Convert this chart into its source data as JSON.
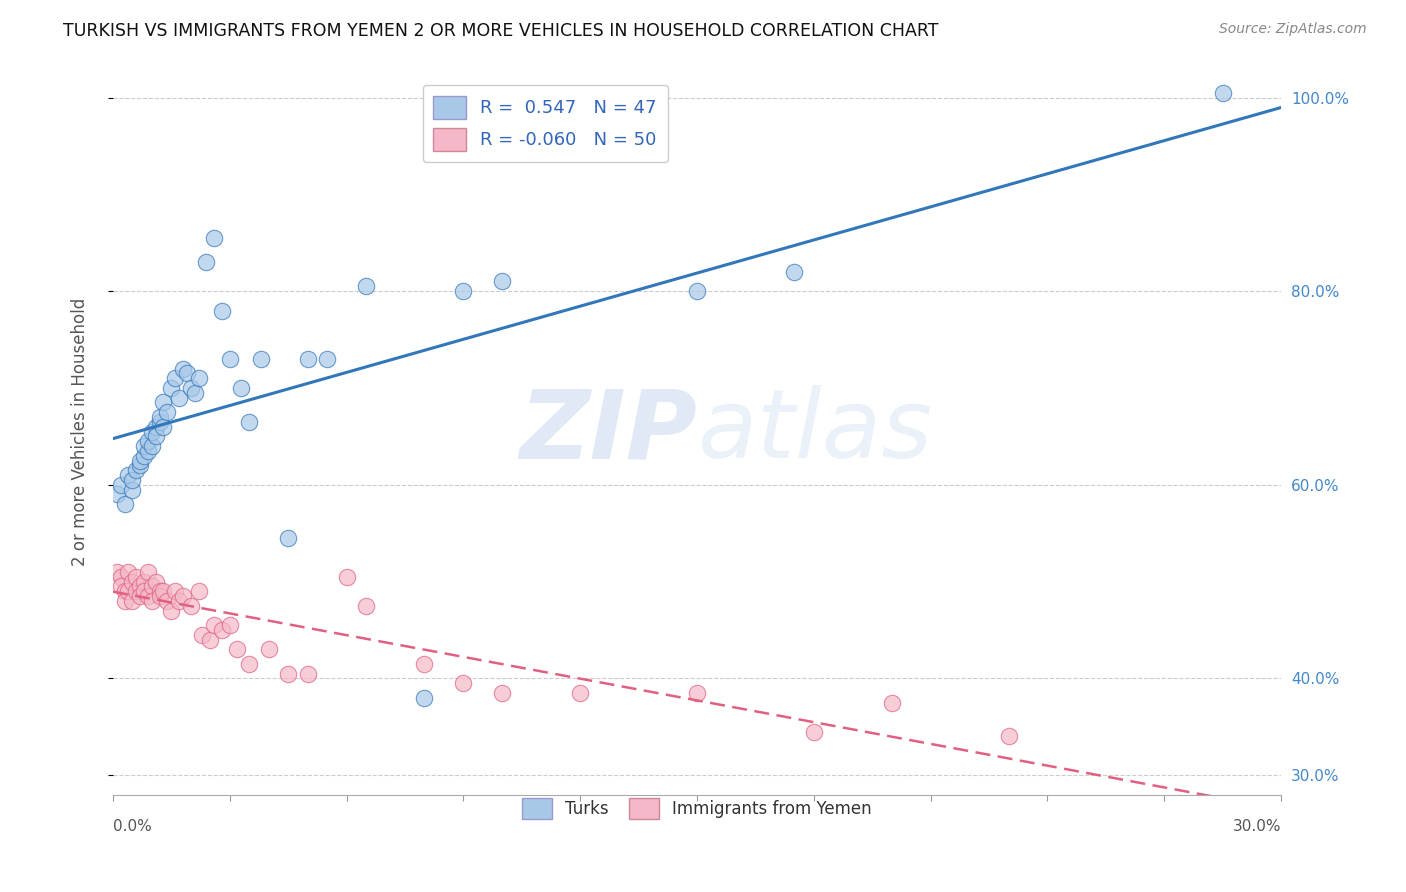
{
  "title": "TURKISH VS IMMIGRANTS FROM YEMEN 2 OR MORE VEHICLES IN HOUSEHOLD CORRELATION CHART",
  "source": "Source: ZipAtlas.com",
  "ylabel": "2 or more Vehicles in Household",
  "xmin": 0.0,
  "xmax": 0.3,
  "ymin": 0.28,
  "ymax": 1.03,
  "y_ticks": [
    0.3,
    0.4,
    0.6,
    0.8,
    1.0
  ],
  "right_y_tick_labels": [
    "30.0%",
    "40.0%",
    "60.0%",
    "80.0%",
    "100.0%"
  ],
  "legend_r_blue": "0.547",
  "legend_n_blue": "47",
  "legend_r_pink": "-0.060",
  "legend_n_pink": "50",
  "blue_color": "#a8c8e8",
  "pink_color": "#f4b8c8",
  "line_blue": "#3377bb",
  "line_pink": "#e06080",
  "watermark_zip": "ZIP",
  "watermark_atlas": "atlas",
  "blue_scatter_x": [
    0.001,
    0.002,
    0.003,
    0.004,
    0.005,
    0.005,
    0.006,
    0.007,
    0.007,
    0.008,
    0.008,
    0.009,
    0.009,
    0.01,
    0.01,
    0.011,
    0.011,
    0.012,
    0.012,
    0.013,
    0.013,
    0.014,
    0.015,
    0.016,
    0.017,
    0.018,
    0.019,
    0.02,
    0.021,
    0.022,
    0.024,
    0.026,
    0.028,
    0.03,
    0.033,
    0.035,
    0.038,
    0.045,
    0.05,
    0.055,
    0.065,
    0.08,
    0.09,
    0.1,
    0.15,
    0.175,
    0.285
  ],
  "blue_scatter_y": [
    0.59,
    0.6,
    0.58,
    0.61,
    0.595,
    0.605,
    0.615,
    0.62,
    0.625,
    0.63,
    0.64,
    0.635,
    0.645,
    0.64,
    0.655,
    0.66,
    0.65,
    0.665,
    0.67,
    0.66,
    0.685,
    0.675,
    0.7,
    0.71,
    0.69,
    0.72,
    0.715,
    0.7,
    0.695,
    0.71,
    0.83,
    0.855,
    0.78,
    0.73,
    0.7,
    0.665,
    0.73,
    0.545,
    0.73,
    0.73,
    0.805,
    0.38,
    0.8,
    0.81,
    0.8,
    0.82,
    1.005
  ],
  "pink_scatter_x": [
    0.001,
    0.002,
    0.002,
    0.003,
    0.003,
    0.004,
    0.004,
    0.005,
    0.005,
    0.006,
    0.006,
    0.007,
    0.007,
    0.008,
    0.008,
    0.009,
    0.009,
    0.01,
    0.01,
    0.011,
    0.012,
    0.012,
    0.013,
    0.014,
    0.015,
    0.016,
    0.017,
    0.018,
    0.02,
    0.022,
    0.023,
    0.025,
    0.026,
    0.028,
    0.03,
    0.032,
    0.035,
    0.04,
    0.045,
    0.05,
    0.06,
    0.065,
    0.08,
    0.09,
    0.1,
    0.12,
    0.15,
    0.18,
    0.2,
    0.23
  ],
  "pink_scatter_y": [
    0.51,
    0.505,
    0.495,
    0.49,
    0.48,
    0.51,
    0.49,
    0.5,
    0.48,
    0.49,
    0.505,
    0.495,
    0.485,
    0.5,
    0.49,
    0.485,
    0.51,
    0.495,
    0.48,
    0.5,
    0.49,
    0.485,
    0.49,
    0.48,
    0.47,
    0.49,
    0.48,
    0.485,
    0.475,
    0.49,
    0.445,
    0.44,
    0.455,
    0.45,
    0.455,
    0.43,
    0.415,
    0.43,
    0.405,
    0.405,
    0.505,
    0.475,
    0.415,
    0.395,
    0.385,
    0.385,
    0.385,
    0.345,
    0.375,
    0.34
  ],
  "background_color": "#ffffff",
  "grid_color": "#cccccc"
}
